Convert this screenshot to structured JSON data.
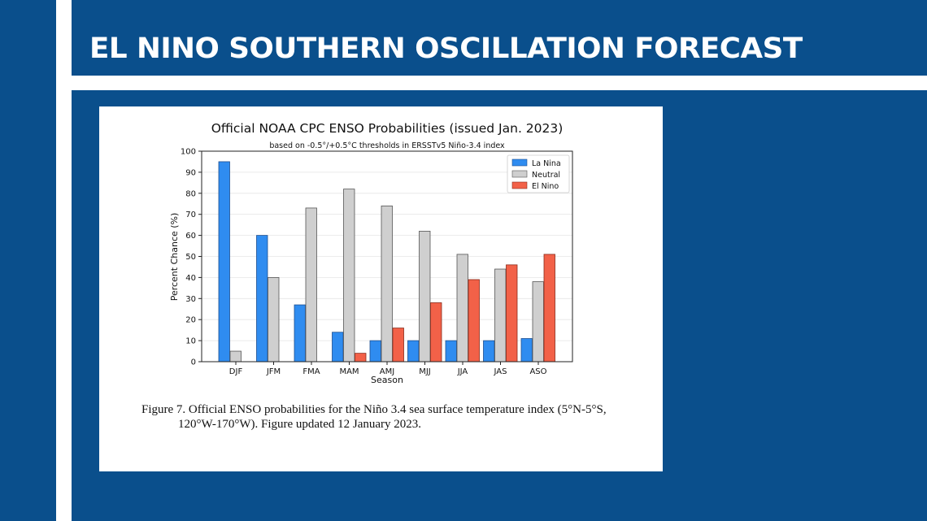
{
  "header": {
    "title": "EL NINO SOUTHERN OSCILLATION FORECAST"
  },
  "colors": {
    "brand_blue": "#0a4f8c",
    "la_nina": "#2f8cf0",
    "neutral": "#cfcfcf",
    "el_nino": "#f26148"
  },
  "caption": {
    "line1": "Figure 7. Official ENSO probabilities for the Niño 3.4 sea surface temperature index (5°N-5°S,",
    "line2": "120°W-170°W). Figure updated 12 January 2023."
  },
  "chart_data": {
    "type": "bar",
    "title": "Official NOAA CPC ENSO Probabilities (issued Jan. 2023)",
    "subtitle": "based on -0.5°/+0.5°C thresholds in ERSSTv5 Niño-3.4 index",
    "xlabel": "Season",
    "ylabel": "Percent Chance (%)",
    "ylim": [
      0,
      100
    ],
    "yticks": [
      0,
      10,
      20,
      30,
      40,
      50,
      60,
      70,
      80,
      90,
      100
    ],
    "grid": true,
    "legend_position": "top-right",
    "categories": [
      "DJF",
      "JFM",
      "FMA",
      "MAM",
      "AMJ",
      "MJJ",
      "JJA",
      "JAS",
      "ASO"
    ],
    "series": [
      {
        "name": "La Nina",
        "color": "#2f8cf0",
        "values": [
          95,
          60,
          27,
          14,
          10,
          10,
          10,
          10,
          11
        ]
      },
      {
        "name": "Neutral",
        "color": "#cfcfcf",
        "values": [
          5,
          40,
          73,
          82,
          74,
          62,
          51,
          44,
          38
        ]
      },
      {
        "name": "El Nino",
        "color": "#f26148",
        "values": [
          0,
          0,
          0,
          4,
          16,
          28,
          39,
          46,
          51
        ]
      }
    ]
  }
}
